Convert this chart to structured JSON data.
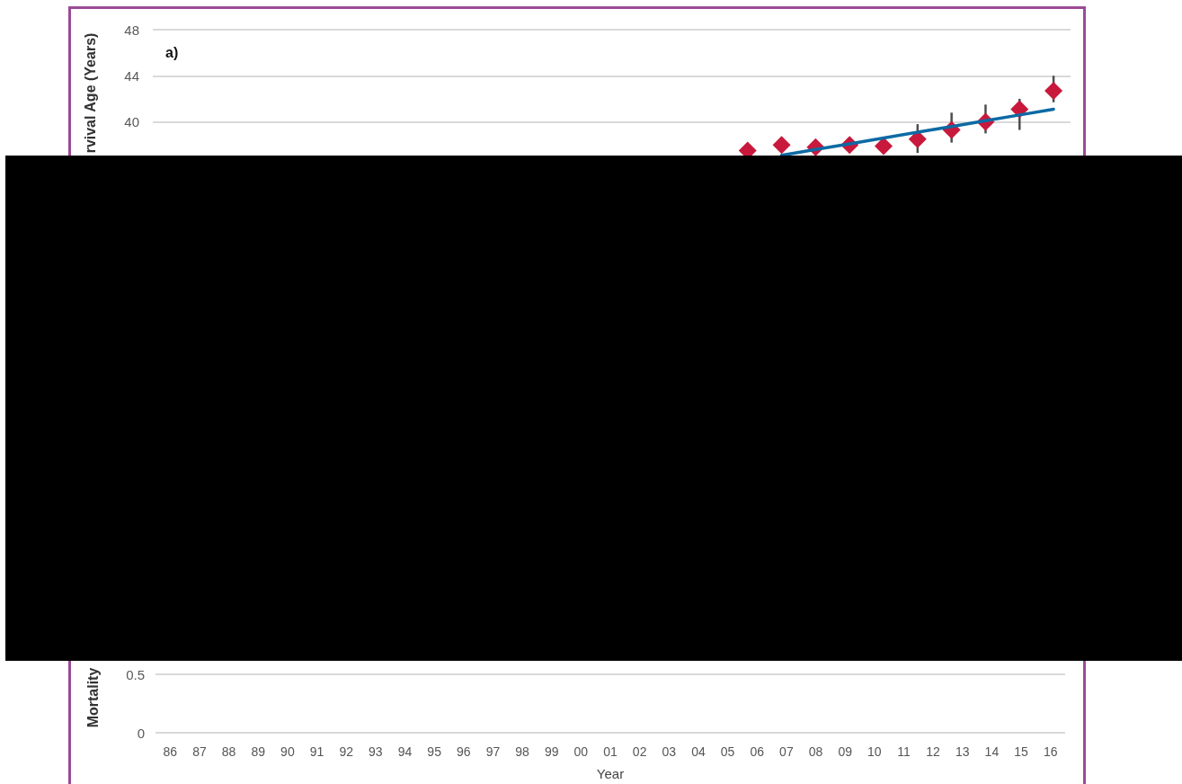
{
  "chart_data": [
    {
      "type": "scatter",
      "title": "a)",
      "ylabel": "rvival Age (Years)",
      "categories": [
        null,
        null,
        null,
        null,
        null,
        null,
        null,
        null,
        null,
        null,
        null,
        null,
        null,
        null,
        null,
        null,
        null,
        null,
        null,
        null,
        null,
        null,
        null,
        null,
        null,
        null,
        null
      ],
      "ylim": [
        37,
        48
      ],
      "yticks": [
        40,
        44,
        48
      ],
      "grid": "y",
      "tick_labels": "y",
      "marker": "diamond",
      "series": [
        {
          "color": "#c8193c",
          "values": [
            null,
            null,
            null,
            null,
            null,
            null,
            null,
            null,
            null,
            null,
            null,
            null,
            null,
            null,
            null,
            null,
            null,
            37.5,
            38.0,
            37.8,
            38.0,
            37.9,
            38.5,
            39.3,
            40.0,
            41.1,
            42.7
          ],
          "errors": [
            null,
            null,
            null,
            null,
            null,
            null,
            null,
            null,
            null,
            null,
            null,
            null,
            null,
            null,
            null,
            null,
            null,
            null,
            null,
            null,
            null,
            null,
            [
              37.3,
              39.8
            ],
            [
              38.2,
              40.8
            ],
            [
              39.0,
              41.5
            ],
            [
              39.3,
              42.0
            ],
            [
              41.7,
              44.0
            ]
          ]
        },
        {
          "type": "line",
          "color": "#0d6aa4",
          "marker": "none",
          "values": [
            null,
            null,
            null,
            null,
            null,
            null,
            null,
            null,
            null,
            null,
            null,
            null,
            null,
            null,
            null,
            null,
            null,
            null,
            37.1,
            37.6,
            38.1,
            38.6,
            39.1,
            39.6,
            40.1,
            40.6,
            41.1
          ]
        }
      ]
    },
    {
      "type": "scatter",
      "xlabel": "Year",
      "ylabel": "Mortality",
      "categories": [
        "86",
        "87",
        "88",
        "89",
        "90",
        "91",
        "92",
        "93",
        "94",
        "95",
        "96",
        "97",
        "98",
        "99",
        "00",
        "01",
        "02",
        "03",
        "04",
        "05",
        "06",
        "07",
        "08",
        "09",
        "10",
        "11",
        "12",
        "13",
        "14",
        "15",
        "16"
      ],
      "values": [
        null,
        null,
        null,
        null,
        null,
        null,
        null,
        null,
        null,
        null,
        null,
        null,
        null,
        null,
        null,
        null,
        null,
        null,
        null,
        null,
        null,
        null,
        null,
        null,
        null,
        null,
        null,
        null,
        null,
        null,
        null
      ],
      "ylim": [
        0,
        0.6
      ],
      "yticks": [
        0,
        0.5
      ],
      "grid": "y"
    }
  ]
}
